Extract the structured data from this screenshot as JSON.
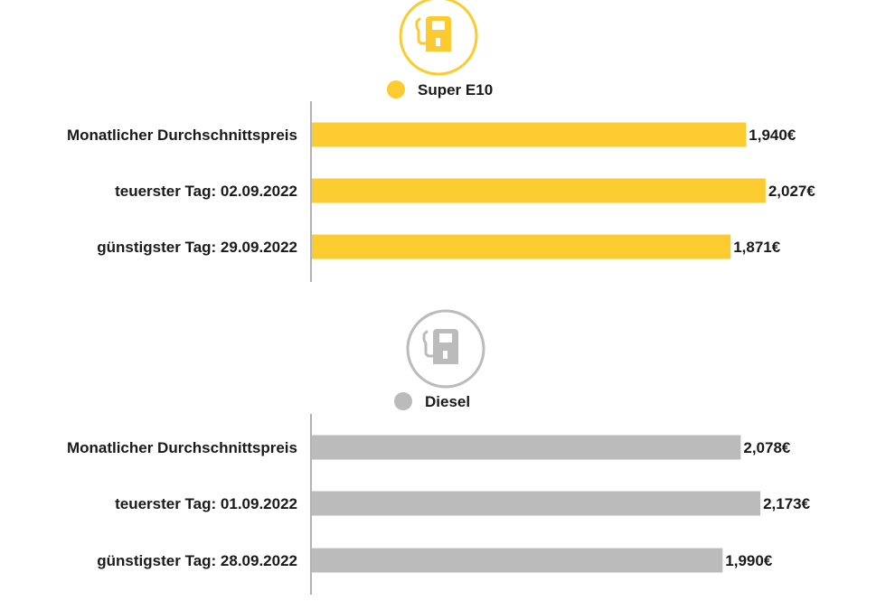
{
  "chart_data": [
    {
      "type": "bar",
      "orientation": "horizontal",
      "legend": "Super E10",
      "icon": "fuel-pump-icon",
      "color": "#FBCB2F",
      "categories": [
        "Monatlicher Durchschnittspreis",
        "teuerster Tag: 02.09.2022",
        "günstigster Tag: 29.09.2022"
      ],
      "values": [
        1.94,
        2.027,
        1.871
      ],
      "labels": [
        "1,940€",
        "2,027€",
        "1,871€"
      ],
      "xlim": [
        0,
        2.262
      ]
    },
    {
      "type": "bar",
      "orientation": "horizontal",
      "legend": "Diesel",
      "icon": "fuel-pump-icon",
      "color": "#BBBBBB",
      "categories": [
        "Monatlicher Durchschnittspreis",
        "teuerster Tag: 01.09.2022",
        "günstigster Tag: 28.09.2022"
      ],
      "values": [
        2.078,
        2.173,
        1.99
      ],
      "labels": [
        "2,078€",
        "2,173€",
        "1,990€"
      ],
      "xlim": [
        0,
        2.453
      ]
    }
  ]
}
